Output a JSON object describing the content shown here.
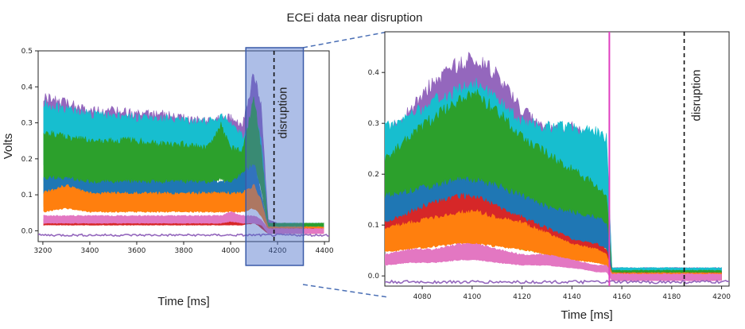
{
  "figure_title": "ECEi data near disruption",
  "chart_data": [
    {
      "type": "line",
      "panel": "overview",
      "xlabel": "Time [ms]",
      "ylabel": "Volts",
      "xlim": [
        3180,
        4420
      ],
      "ylim": [
        -0.03,
        0.5
      ],
      "xticks": [
        3200,
        3400,
        3600,
        3800,
        4000,
        4200,
        4400
      ],
      "yticks": [
        0.0,
        0.1,
        0.2,
        0.3,
        0.4,
        0.5
      ],
      "grid": false,
      "annotations": [
        {
          "text": "disruption",
          "x": 4185,
          "style": "dashed vertical line"
        },
        {
          "text": "",
          "x_range": [
            4065,
            4310
          ],
          "style": "highlighted zoom window"
        }
      ],
      "series": [
        {
          "color": "#9467bd",
          "x": [
            3200,
            3300,
            3400,
            3500,
            3600,
            3700,
            3800,
            3900,
            3960,
            4000,
            4050,
            4100,
            4130,
            4160,
            4200,
            4300,
            4400
          ],
          "values": [
            0.36,
            0.34,
            0.32,
            0.32,
            0.31,
            0.31,
            0.3,
            0.29,
            0.3,
            0.3,
            0.28,
            0.42,
            0.33,
            0.03,
            0.02,
            0.02,
            0.02
          ]
        },
        {
          "color": "#17becf",
          "x": [
            3200,
            3300,
            3400,
            3500,
            3600,
            3700,
            3800,
            3900,
            3960,
            4000,
            4050,
            4100,
            4130,
            4160,
            4200,
            4300,
            4400
          ],
          "values": [
            0.34,
            0.32,
            0.31,
            0.31,
            0.3,
            0.3,
            0.29,
            0.29,
            0.3,
            0.29,
            0.25,
            0.3,
            0.25,
            0.02,
            0.02,
            0.02,
            0.02
          ]
        },
        {
          "color": "#2ca02c",
          "x": [
            3200,
            3300,
            3400,
            3500,
            3600,
            3700,
            3800,
            3900,
            3960,
            4000,
            4050,
            4100,
            4130,
            4160,
            4200,
            4300,
            4400
          ],
          "values": [
            0.26,
            0.25,
            0.24,
            0.24,
            0.24,
            0.23,
            0.23,
            0.22,
            0.28,
            0.22,
            0.21,
            0.35,
            0.22,
            0.02,
            0.02,
            0.02,
            0.02
          ]
        },
        {
          "color": "#bcbd22",
          "x": [
            3200,
            3300,
            3400,
            3500,
            3600,
            3700,
            3800,
            3900,
            3960,
            4000,
            4050,
            4100,
            4130,
            4160,
            4200,
            4300,
            4400
          ],
          "values": [
            0.13,
            0.13,
            0.12,
            0.12,
            0.12,
            0.12,
            0.12,
            0.12,
            0.13,
            0.12,
            0.12,
            0.16,
            0.1,
            0.01,
            0.01,
            0.01,
            0.01
          ]
        },
        {
          "color": "#1f77b4",
          "x": [
            3200,
            3300,
            3400,
            3500,
            3600,
            3700,
            3800,
            3900,
            3960,
            4000,
            4050,
            4100,
            4130,
            4160,
            4200,
            4300,
            4400
          ],
          "values": [
            0.14,
            0.14,
            0.13,
            0.13,
            0.13,
            0.13,
            0.13,
            0.13,
            0.13,
            0.13,
            0.15,
            0.18,
            0.1,
            0.01,
            0.01,
            0.01,
            0.01
          ]
        },
        {
          "color": "#ff7f0e",
          "x": [
            3200,
            3300,
            3400,
            3500,
            3600,
            3700,
            3800,
            3900,
            3960,
            4000,
            4050,
            4100,
            4130,
            4160,
            4200,
            4300,
            4400
          ],
          "values": [
            0.1,
            0.12,
            0.1,
            0.1,
            0.1,
            0.1,
            0.1,
            0.1,
            0.1,
            0.1,
            0.1,
            0.12,
            0.08,
            0.01,
            0.01,
            0.01,
            0.01
          ]
        },
        {
          "color": "#d62728",
          "x": [
            3200,
            3300,
            3400,
            3500,
            3600,
            3700,
            3800,
            3900,
            3960,
            4000,
            4050,
            4100,
            4130,
            4160,
            4200,
            4300,
            4400
          ],
          "values": [
            0.03,
            0.03,
            0.03,
            0.03,
            0.03,
            0.03,
            0.03,
            0.03,
            0.03,
            0.03,
            0.03,
            0.04,
            0.02,
            0.005,
            0.005,
            0.005,
            0.005
          ]
        },
        {
          "color": "#e377c2",
          "x": [
            3200,
            3300,
            3400,
            3500,
            3600,
            3700,
            3800,
            3900,
            3960,
            4000,
            4050,
            4100,
            4130,
            4160,
            4200,
            4300,
            4400
          ],
          "values": [
            0.04,
            0.04,
            0.04,
            0.04,
            0.04,
            0.04,
            0.04,
            0.04,
            0.04,
            0.05,
            0.04,
            0.04,
            0.03,
            0.005,
            0.005,
            0.005,
            0.005
          ]
        }
      ]
    },
    {
      "type": "line",
      "panel": "zoom",
      "xlabel": "Time [ms]",
      "ylabel": "",
      "xlim": [
        4065,
        4203
      ],
      "ylim": [
        -0.02,
        0.48
      ],
      "xticks": [
        4080,
        4100,
        4120,
        4140,
        4160,
        4180,
        4200
      ],
      "yticks": [
        0.0,
        0.1,
        0.2,
        0.3,
        0.4
      ],
      "grid": false,
      "annotations": [
        {
          "text": "disruption",
          "x": 4185,
          "style": "dashed vertical line"
        },
        {
          "text": "",
          "x": 4155,
          "style": "magenta vertical line"
        }
      ],
      "series": [
        {
          "color": "#9467bd",
          "x": [
            4065,
            4075,
            4085,
            4095,
            4102,
            4110,
            4120,
            4130,
            4140,
            4150,
            4154,
            4156,
            4170,
            4185,
            4200
          ],
          "values": [
            0.27,
            0.31,
            0.37,
            0.4,
            0.41,
            0.38,
            0.31,
            0.28,
            0.28,
            0.25,
            0.24,
            0.015,
            0.015,
            0.015,
            0.015
          ]
        },
        {
          "color": "#17becf",
          "x": [
            4065,
            4075,
            4085,
            4095,
            4102,
            4110,
            4120,
            4130,
            4140,
            4150,
            4154,
            4156,
            4170,
            4185,
            4200
          ],
          "values": [
            0.28,
            0.3,
            0.33,
            0.35,
            0.36,
            0.33,
            0.29,
            0.28,
            0.28,
            0.27,
            0.26,
            0.015,
            0.015,
            0.015,
            0.015
          ]
        },
        {
          "color": "#2ca02c",
          "x": [
            4065,
            4075,
            4085,
            4095,
            4102,
            4110,
            4120,
            4130,
            4140,
            4150,
            4154,
            4156,
            4170,
            4185,
            4200
          ],
          "values": [
            0.22,
            0.26,
            0.3,
            0.33,
            0.34,
            0.31,
            0.26,
            0.23,
            0.2,
            0.17,
            0.15,
            0.01,
            0.01,
            0.01,
            0.01
          ]
        },
        {
          "color": "#bcbd22",
          "x": [
            4065,
            4075,
            4085,
            4095,
            4102,
            4110,
            4120,
            4130,
            4140,
            4150,
            4154,
            4156,
            4170,
            4185,
            4200
          ],
          "values": [
            0.1,
            0.11,
            0.12,
            0.13,
            0.13,
            0.12,
            0.1,
            0.08,
            0.07,
            0.06,
            0.05,
            0.005,
            0.005,
            0.005,
            0.005
          ]
        },
        {
          "color": "#1f77b4",
          "x": [
            4065,
            4075,
            4085,
            4095,
            4102,
            4110,
            4120,
            4130,
            4140,
            4150,
            4154,
            4156,
            4170,
            4185,
            4200
          ],
          "values": [
            0.15,
            0.16,
            0.17,
            0.18,
            0.18,
            0.17,
            0.15,
            0.13,
            0.12,
            0.11,
            0.1,
            0.005,
            0.005,
            0.005,
            0.005
          ]
        },
        {
          "color": "#d62728",
          "x": [
            4065,
            4075,
            4085,
            4095,
            4102,
            4110,
            4120,
            4130,
            4140,
            4150,
            4154,
            4156,
            4170,
            4185,
            4200
          ],
          "values": [
            0.1,
            0.12,
            0.14,
            0.15,
            0.15,
            0.13,
            0.11,
            0.09,
            0.07,
            0.06,
            0.05,
            0.005,
            0.005,
            0.005,
            0.005
          ]
        },
        {
          "color": "#ff7f0e",
          "x": [
            4065,
            4075,
            4085,
            4095,
            4102,
            4110,
            4120,
            4130,
            4140,
            4150,
            4154,
            4156,
            4170,
            4185,
            4200
          ],
          "values": [
            0.09,
            0.1,
            0.11,
            0.12,
            0.12,
            0.11,
            0.1,
            0.08,
            0.06,
            0.05,
            0.04,
            0.005,
            0.005,
            0.005,
            0.005
          ]
        },
        {
          "color": "#e377c2",
          "x": [
            4065,
            4075,
            4085,
            4095,
            4102,
            4110,
            4120,
            4130,
            4140,
            4150,
            4154,
            4156,
            4170,
            4185,
            4200
          ],
          "values": [
            0.04,
            0.05,
            0.05,
            0.06,
            0.06,
            0.05,
            0.04,
            0.04,
            0.03,
            0.02,
            0.02,
            0.003,
            0.003,
            0.003,
            0.003
          ]
        }
      ]
    }
  ]
}
